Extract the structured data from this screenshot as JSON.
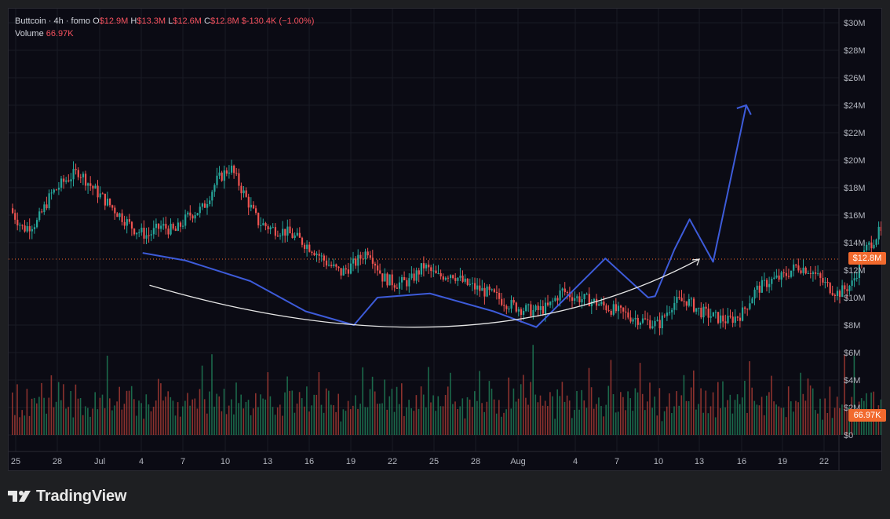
{
  "legend": {
    "symbol": "Buttcoin · 4h · fomo",
    "open_label": "O",
    "open": "$12.9M",
    "high_label": "H",
    "high": "$13.3M",
    "low_label": "L",
    "low": "$12.6M",
    "close_label": "C",
    "close": "$12.8M",
    "change": "$-130.4K (−1.00%)",
    "volume_label": "Volume",
    "volume": "66.97K"
  },
  "price_badge": "$12.8M",
  "volume_badge": "66.97K",
  "brand": "TradingView",
  "colors": {
    "up": "#26a69a",
    "down": "#ef5350",
    "drawing": "#3d5bd9",
    "arc": "#e6e6e6",
    "badge": "#f26a2e",
    "dotted_line": "#f26a2e"
  },
  "chart_data": {
    "type": "candlestick",
    "x_tick_labels": [
      "25",
      "28",
      "Jul",
      "4",
      "7",
      "10",
      "13",
      "16",
      "19",
      "22",
      "25",
      "28",
      "Aug",
      "4",
      "7",
      "10",
      "13",
      "16",
      "19",
      "22"
    ],
    "y_tick_labels": [
      "$30M",
      "$28M",
      "$26M",
      "$24M",
      "$22M",
      "$20M",
      "$18M",
      "$16M",
      "$14M",
      "$12M",
      "$10M",
      "$8M",
      "$6M",
      "$4M",
      "$2M",
      "$0"
    ],
    "ylim": [
      0,
      30
    ],
    "y_unit": "$M",
    "last_price": 12.8,
    "close_path": [
      [
        0,
        16.5
      ],
      [
        1,
        15.0
      ],
      [
        2,
        15.5
      ],
      [
        3,
        17.5
      ],
      [
        4,
        18.5
      ],
      [
        5,
        19.2
      ],
      [
        6,
        18.0
      ],
      [
        7,
        17.0
      ],
      [
        8,
        16.0
      ],
      [
        9,
        15.0
      ],
      [
        10,
        14.5
      ],
      [
        11,
        15.2
      ],
      [
        12,
        14.8
      ],
      [
        13,
        16.0
      ],
      [
        14,
        16.5
      ],
      [
        15,
        18.5
      ],
      [
        16,
        19.5
      ],
      [
        17,
        17.5
      ],
      [
        18,
        15.5
      ],
      [
        19,
        15.0
      ],
      [
        20,
        14.8
      ],
      [
        21,
        14.2
      ],
      [
        22,
        13.5
      ],
      [
        23,
        12.5
      ],
      [
        24,
        11.8
      ],
      [
        25,
        12.5
      ],
      [
        26,
        13.5
      ],
      [
        27,
        11.5
      ],
      [
        28,
        11.0
      ],
      [
        29,
        11.2
      ],
      [
        30,
        12.3
      ],
      [
        31,
        11.5
      ],
      [
        32,
        11.8
      ],
      [
        33,
        11.0
      ],
      [
        34,
        10.6
      ],
      [
        35,
        10.2
      ],
      [
        36,
        9.6
      ],
      [
        37,
        9.2
      ],
      [
        38,
        9.0
      ],
      [
        39,
        9.3
      ],
      [
        40,
        10.5
      ],
      [
        41,
        10.0
      ],
      [
        42,
        9.8
      ],
      [
        43,
        9.4
      ],
      [
        44,
        9.0
      ],
      [
        45,
        8.6
      ],
      [
        46,
        8.3
      ],
      [
        47,
        8.0
      ],
      [
        48,
        9.6
      ],
      [
        49,
        9.8
      ],
      [
        50,
        9.0
      ],
      [
        51,
        8.6
      ],
      [
        52,
        8.3
      ],
      [
        53,
        8.8
      ],
      [
        54,
        10.5
      ],
      [
        55,
        11.2
      ],
      [
        56,
        11.5
      ],
      [
        57,
        12.3
      ],
      [
        58,
        12.0
      ],
      [
        59,
        11.0
      ],
      [
        60,
        10.3
      ],
      [
        61,
        11.0
      ],
      [
        62,
        13.5
      ],
      [
        63,
        14.8
      ],
      [
        64,
        13.2
      ],
      [
        65,
        12.8
      ]
    ],
    "volume_relative": [
      0.45,
      0.3,
      0.55,
      0.25,
      0.4,
      0.35,
      0.6,
      0.3,
      0.5,
      0.45,
      0.38,
      0.55,
      0.9,
      0.4,
      0.35,
      0.6,
      0.95,
      0.45,
      0.5,
      0.55,
      0.4,
      0.6,
      0.35,
      0.45,
      0.5,
      0.3,
      0.55,
      0.4,
      0.6,
      0.35,
      0.45,
      0.5,
      0.3,
      0.4,
      0.45,
      0.35,
      0.55,
      0.6,
      0.4,
      0.95,
      0.5,
      0.45,
      0.35,
      0.4,
      0.5,
      0.3,
      0.45,
      0.6,
      0.8,
      0.55,
      0.4,
      0.35,
      0.5,
      0.45,
      0.3,
      0.6,
      0.4,
      0.35,
      0.5,
      0.45,
      0.85,
      0.55,
      0.4,
      0.6,
      0.7,
      0.5
    ]
  },
  "annotations": {
    "zigzag": [
      [
        9.7,
        13.25
      ],
      [
        12.8,
        12.7
      ],
      [
        17.5,
        11.2
      ],
      [
        21.5,
        9.0
      ],
      [
        25,
        8.0
      ],
      [
        26.7,
        10.0
      ],
      [
        30.5,
        10.3
      ],
      [
        35.1,
        9.0
      ],
      [
        38.2,
        7.85
      ],
      [
        43.2,
        12.85
      ],
      [
        46.3,
        10.0
      ],
      [
        46.8,
        10.1
      ],
      [
        48.2,
        13.5
      ],
      [
        49.3,
        15.7
      ],
      [
        51.0,
        12.6
      ],
      [
        53.4,
        24.0
      ]
    ],
    "cup_arc": [
      [
        10.2,
        10.9
      ],
      [
        33.5,
        7.1
      ],
      [
        50.0,
        12.8
      ]
    ]
  }
}
